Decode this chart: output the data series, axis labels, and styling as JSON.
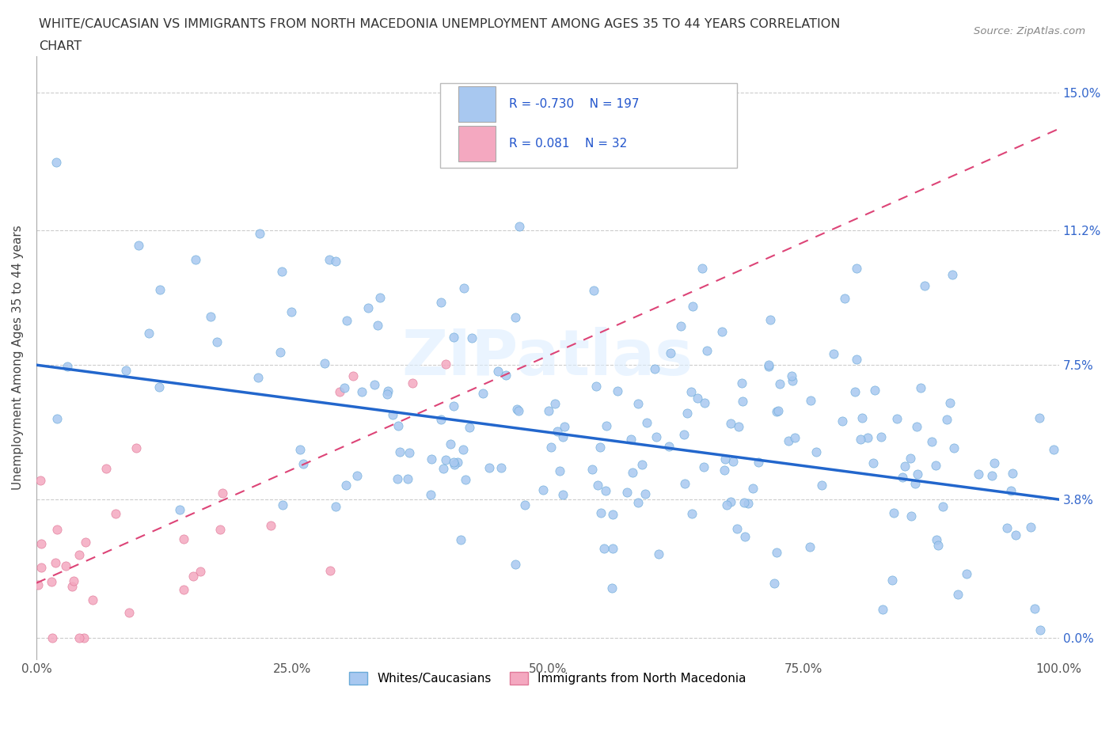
{
  "title_line1": "WHITE/CAUCASIAN VS IMMIGRANTS FROM NORTH MACEDONIA UNEMPLOYMENT AMONG AGES 35 TO 44 YEARS CORRELATION",
  "title_line2": "CHART",
  "source_text": "Source: ZipAtlas.com",
  "ylabel": "Unemployment Among Ages 35 to 44 years",
  "xmin": 0.0,
  "xmax": 1.0,
  "ymin": 0.0,
  "ymax": 0.16,
  "ytick_labels": [
    "0.0%",
    "3.8%",
    "7.5%",
    "11.2%",
    "15.0%"
  ],
  "ytick_values": [
    0.0,
    0.038,
    0.075,
    0.112,
    0.15
  ],
  "xtick_labels": [
    "0.0%",
    "25.0%",
    "50.0%",
    "75.0%",
    "100.0%"
  ],
  "xtick_values": [
    0.0,
    0.25,
    0.5,
    0.75,
    1.0
  ],
  "legend_entries": [
    {
      "label": "Whites/Caucasians",
      "color": "#a8c8f0",
      "edge_color": "#6aaad8",
      "R": "-0.730",
      "N": "197"
    },
    {
      "label": "Immigrants from North Macedonia",
      "color": "#f4a8c0",
      "edge_color": "#e07898",
      "R": "0.081",
      "N": "32"
    }
  ],
  "blue_line_x": [
    0.0,
    1.0
  ],
  "blue_line_y": [
    0.075,
    0.038
  ],
  "pink_line_x": [
    0.0,
    1.0
  ],
  "pink_line_y": [
    0.015,
    0.14
  ],
  "watermark": "ZIPatlas",
  "blue_scatter_seed": 42,
  "pink_scatter_seed": 7
}
